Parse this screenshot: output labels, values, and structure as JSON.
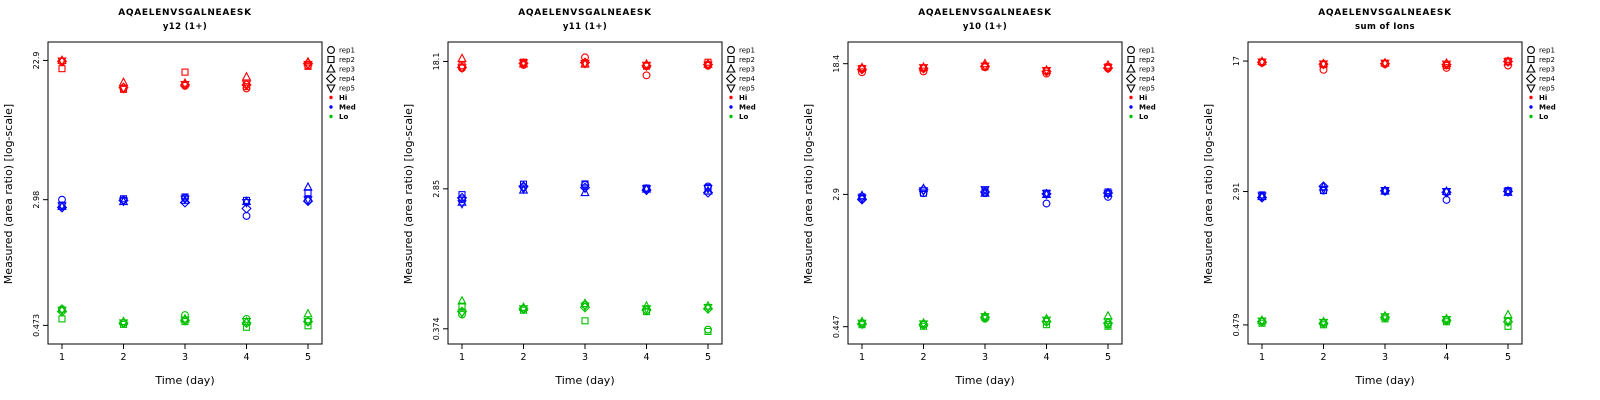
{
  "chart_data": {
    "type": "scatter",
    "peptide": "AQAELENVSGALNEAESK",
    "xlabel": "Time (day)",
    "ylabel": "Measured (area ratio) [log-scale]",
    "x": [
      1,
      2,
      3,
      4,
      5
    ],
    "x_axis": {
      "scale": "linear",
      "ticks": [
        1,
        2,
        3,
        4,
        5
      ]
    },
    "y_axis": {
      "scale": "log"
    },
    "legend_position": "right",
    "grid": false,
    "replicates": [
      {
        "name": "rep1",
        "symbol": "circle"
      },
      {
        "name": "rep2",
        "symbol": "square"
      },
      {
        "name": "rep3",
        "symbol": "triangle-up"
      },
      {
        "name": "rep4",
        "symbol": "diamond"
      },
      {
        "name": "rep5",
        "symbol": "triangle-down"
      }
    ],
    "groups": [
      {
        "name": "Hi",
        "color": "#ff0000"
      },
      {
        "name": "Med",
        "color": "#0000ff"
      },
      {
        "name": "Lo",
        "color": "#00c000"
      }
    ],
    "panels": [
      {
        "subtitle": "y12 (1+)",
        "yticks": [
          0.473,
          2.98,
          22.9
        ],
        "ylim": [
          0.36,
          30
        ],
        "values": {
          "Hi": [
            [
              22.5,
              15.2,
              15.8,
              15.2,
              21.3
            ],
            [
              20.3,
              15.0,
              19.3,
              15.6,
              21.0
            ],
            [
              22.9,
              16.6,
              16.4,
              18.0,
              22.4
            ],
            [
              22.6,
              15.4,
              16.0,
              16.0,
              21.9
            ],
            [
              22.7,
              15.2,
              16.1,
              16.2,
              21.6
            ]
          ],
          "Med": [
            [
              2.98,
              2.96,
              3.05,
              2.35,
              2.95
            ],
            [
              2.75,
              3.02,
              3.1,
              2.95,
              3.3
            ],
            [
              2.7,
              2.9,
              2.95,
              2.9,
              3.58
            ],
            [
              2.66,
              2.95,
              2.86,
              2.62,
              2.92
            ],
            [
              2.72,
              2.92,
              3.0,
              2.86,
              2.98
            ]
          ],
          "Lo": [
            [
              0.6,
              0.49,
              0.55,
              0.52,
              0.5
            ],
            [
              0.52,
              0.48,
              0.5,
              0.46,
              0.47
            ],
            [
              0.6,
              0.5,
              0.52,
              0.5,
              0.56
            ],
            [
              0.58,
              0.49,
              0.51,
              0.49,
              0.5
            ],
            [
              0.59,
              0.49,
              0.51,
              0.5,
              0.5
            ]
          ]
        }
      },
      {
        "subtitle": "y11 (1+)",
        "yticks": [
          0.374,
          2.85,
          18.1
        ],
        "ylim": [
          0.3,
          24
        ],
        "values": {
          "Hi": [
            [
              16.4,
              17.2,
              19.2,
              14.8,
              17.0
            ],
            [
              17.0,
              17.9,
              17.4,
              16.9,
              17.9
            ],
            [
              18.9,
              17.5,
              17.5,
              17.4,
              17.4
            ],
            [
              16.6,
              17.6,
              17.8,
              17.0,
              17.3
            ],
            [
              16.5,
              17.7,
              17.6,
              17.1,
              17.2
            ]
          ],
          "Med": [
            [
              2.45,
              2.92,
              3.02,
              2.86,
              2.95
            ],
            [
              2.62,
              3.05,
              3.06,
              2.88,
              2.9
            ],
            [
              2.35,
              2.8,
              2.7,
              2.84,
              2.76
            ],
            [
              2.5,
              2.95,
              2.9,
              2.8,
              2.7
            ],
            [
              2.3,
              2.85,
              2.88,
              2.85,
              2.86
            ]
          ],
          "Lo": [
            [
              0.46,
              0.5,
              0.53,
              0.49,
              0.37
            ],
            [
              0.52,
              0.49,
              0.42,
              0.48,
              0.36
            ],
            [
              0.56,
              0.51,
              0.54,
              0.52,
              0.52
            ],
            [
              0.48,
              0.5,
              0.51,
              0.49,
              0.5
            ],
            [
              0.47,
              0.5,
              0.52,
              0.5,
              0.51
            ]
          ]
        }
      },
      {
        "subtitle": "y10 (1+)",
        "yticks": [
          0.447,
          2.9,
          18.4
        ],
        "ylim": [
          0.35,
          25
        ],
        "values": {
          "Hi": [
            [
              16.3,
              16.5,
              17.5,
              16.0,
              17.2
            ],
            [
              17.2,
              17.3,
              17.6,
              16.6,
              17.6
            ],
            [
              17.4,
              17.5,
              18.4,
              16.8,
              18.0
            ],
            [
              17.0,
              17.2,
              17.7,
              16.5,
              17.3
            ],
            [
              17.1,
              17.4,
              17.8,
              16.7,
              17.4
            ]
          ],
          "Med": [
            [
              2.72,
              2.95,
              2.95,
              2.55,
              2.8
            ],
            [
              2.8,
              2.95,
              3.05,
              2.95,
              3.0
            ],
            [
              2.85,
              3.15,
              2.95,
              2.9,
              2.95
            ],
            [
              2.7,
              3.1,
              3.0,
              2.92,
              2.96
            ],
            [
              2.75,
              3.05,
              3.1,
              2.94,
              2.92
            ]
          ],
          "Lo": [
            [
              0.47,
              0.46,
              0.5,
              0.48,
              0.46
            ],
            [
              0.46,
              0.45,
              0.51,
              0.46,
              0.45
            ],
            [
              0.48,
              0.47,
              0.52,
              0.5,
              0.52
            ],
            [
              0.465,
              0.46,
              0.51,
              0.48,
              0.47
            ],
            [
              0.47,
              0.465,
              0.515,
              0.49,
              0.48
            ]
          ]
        }
      },
      {
        "subtitle": "sum of Ions",
        "yticks": [
          0.479,
          2.91,
          17
        ],
        "ylim": [
          0.37,
          22
        ],
        "values": {
          "Hi": [
            [
              16.6,
              15.1,
              16.3,
              15.5,
              16.0
            ],
            [
              16.8,
              16.2,
              16.5,
              16.0,
              17.0
            ],
            [
              16.9,
              16.4,
              16.6,
              16.5,
              16.8
            ],
            [
              16.7,
              16.3,
              16.4,
              16.2,
              16.9
            ],
            [
              16.75,
              16.35,
              16.5,
              16.3,
              16.85
            ]
          ],
          "Med": [
            [
              2.7,
              2.95,
              2.92,
              2.6,
              2.9
            ],
            [
              2.78,
              2.95,
              2.95,
              2.9,
              2.95
            ],
            [
              2.72,
              3.1,
              2.93,
              2.92,
              2.88
            ],
            [
              2.68,
              3.12,
              2.94,
              2.88,
              2.92
            ],
            [
              2.74,
              3.0,
              2.95,
              2.91,
              2.9
            ]
          ],
          "Lo": [
            [
              0.5,
              0.49,
              0.53,
              0.51,
              0.5
            ],
            [
              0.49,
              0.48,
              0.52,
              0.5,
              0.47
            ],
            [
              0.51,
              0.5,
              0.54,
              0.52,
              0.55
            ],
            [
              0.5,
              0.49,
              0.53,
              0.51,
              0.5
            ],
            [
              0.505,
              0.495,
              0.535,
              0.515,
              0.505
            ]
          ]
        }
      }
    ]
  }
}
